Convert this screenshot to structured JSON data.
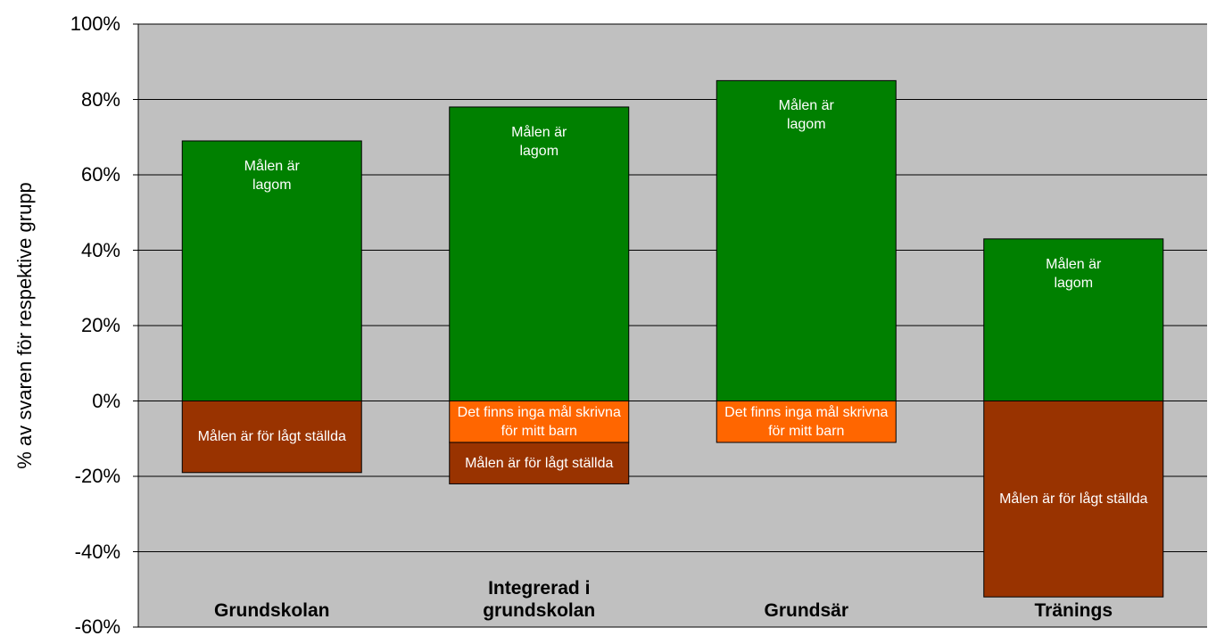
{
  "chart_data": {
    "type": "bar",
    "stacked": true,
    "ylabel": "% av svaren för respektive grupp",
    "categories": [
      "Grundskolan",
      "Integrerad i grundskolan",
      "Grundsär",
      "Tränings"
    ],
    "series": [
      {
        "name": "Målen är lagom",
        "color": "#008000",
        "values": [
          69,
          78,
          85,
          43
        ]
      },
      {
        "name": "Det finns inga mål skrivna för mitt barn",
        "color": "#ff6600",
        "values": [
          null,
          -11,
          -11,
          null
        ]
      },
      {
        "name": "Målen är för lågt ställda",
        "color": "#993300",
        "values": [
          -19,
          -11,
          null,
          -52
        ]
      }
    ],
    "ylim": [
      -60,
      100
    ],
    "yticks": [
      {
        "value": -60,
        "label": "-60%"
      },
      {
        "value": -40,
        "label": "-40%"
      },
      {
        "value": -20,
        "label": "-20%"
      },
      {
        "value": 0,
        "label": "0%"
      },
      {
        "value": 20,
        "label": "20%"
      },
      {
        "value": 40,
        "label": "40%"
      },
      {
        "value": 60,
        "label": "60%"
      },
      {
        "value": 80,
        "label": "80%"
      },
      {
        "value": 100,
        "label": "100%"
      }
    ],
    "grid": true,
    "background": "#c0c0c0"
  }
}
